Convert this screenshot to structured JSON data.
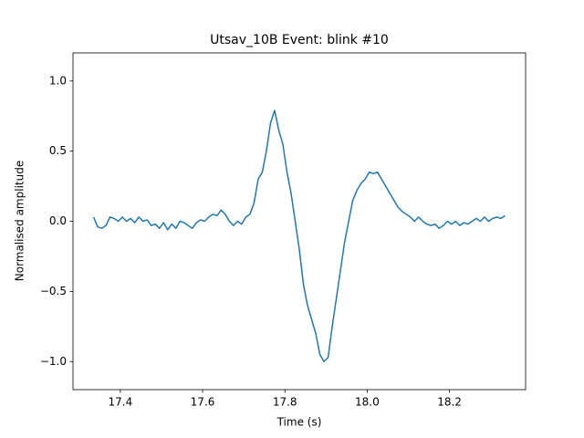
{
  "chart_data": {
    "type": "line",
    "title": "Utsav_10B Event: blink #10",
    "x_label": "Time (s)",
    "y_label": "Normalised amplitude",
    "x": [
      17.335,
      17.345,
      17.355,
      17.365,
      17.375,
      17.385,
      17.395,
      17.405,
      17.415,
      17.425,
      17.435,
      17.445,
      17.455,
      17.465,
      17.475,
      17.485,
      17.495,
      17.505,
      17.515,
      17.525,
      17.535,
      17.545,
      17.555,
      17.565,
      17.575,
      17.585,
      17.595,
      17.605,
      17.615,
      17.625,
      17.635,
      17.645,
      17.655,
      17.665,
      17.675,
      17.685,
      17.695,
      17.705,
      17.715,
      17.725,
      17.735,
      17.745,
      17.755,
      17.765,
      17.775,
      17.785,
      17.795,
      17.805,
      17.815,
      17.825,
      17.835,
      17.845,
      17.855,
      17.865,
      17.875,
      17.885,
      17.895,
      17.905,
      17.915,
      17.925,
      17.935,
      17.945,
      17.955,
      17.965,
      17.975,
      17.985,
      17.995,
      18.005,
      18.015,
      18.025,
      18.035,
      18.045,
      18.055,
      18.065,
      18.075,
      18.085,
      18.095,
      18.105,
      18.115,
      18.125,
      18.135,
      18.145,
      18.155,
      18.165,
      18.175,
      18.185,
      18.195,
      18.205,
      18.215,
      18.225,
      18.235,
      18.245,
      18.255,
      18.265,
      18.275,
      18.285,
      18.295,
      18.305,
      18.315,
      18.325,
      18.335
    ],
    "series": [
      {
        "color": "#1f77b4",
        "values": [
          0.03,
          -0.04,
          -0.05,
          -0.03,
          0.03,
          0.02,
          0.0,
          0.03,
          0.0,
          0.02,
          -0.01,
          0.03,
          0.0,
          0.01,
          -0.03,
          -0.02,
          -0.05,
          -0.01,
          -0.06,
          -0.02,
          -0.05,
          0.0,
          -0.01,
          -0.03,
          -0.05,
          -0.01,
          0.01,
          0.0,
          0.03,
          0.05,
          0.04,
          0.08,
          0.05,
          0.0,
          -0.03,
          0.0,
          -0.02,
          0.03,
          0.05,
          0.13,
          0.3,
          0.35,
          0.5,
          0.7,
          0.79,
          0.65,
          0.55,
          0.35,
          0.2,
          0.0,
          -0.2,
          -0.45,
          -0.6,
          -0.7,
          -0.8,
          -0.95,
          -1.0,
          -0.97,
          -0.75,
          -0.55,
          -0.35,
          -0.15,
          0.0,
          0.15,
          0.22,
          0.27,
          0.3,
          0.35,
          0.34,
          0.35,
          0.3,
          0.25,
          0.2,
          0.15,
          0.1,
          0.07,
          0.05,
          0.03,
          0.0,
          0.03,
          0.0,
          -0.02,
          -0.03,
          -0.02,
          -0.05,
          -0.03,
          0.0,
          -0.02,
          0.0,
          -0.03,
          -0.01,
          -0.02,
          0.0,
          0.02,
          0.0,
          0.03,
          0.0,
          0.02,
          0.03,
          0.02,
          0.04
        ]
      }
    ],
    "xlim": [
      17.285,
      18.385
    ],
    "ylim": [
      -1.2,
      1.2
    ],
    "xticks": [
      17.4,
      17.6,
      17.8,
      {
        "value": 18.0,
        "label": "18.0"
      },
      18.2
    ],
    "yticks": [
      {
        "value": -1,
        "label": "−1.0"
      },
      {
        "value": -0.5,
        "label": "−0.5"
      },
      {
        "value": 0,
        "label": "0.0"
      },
      0.5,
      {
        "value": 1,
        "label": "1.0"
      }
    ]
  }
}
